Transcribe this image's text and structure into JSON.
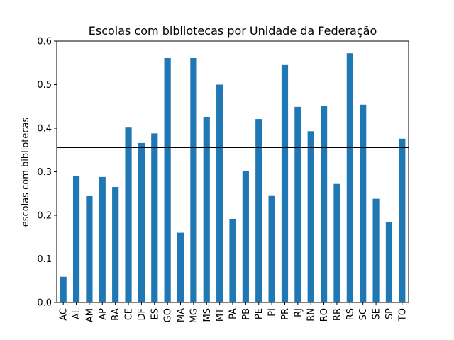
{
  "chart_data": {
    "type": "bar",
    "title": "Escolas com bibliotecas por Unidade da Federação",
    "xlabel": "",
    "ylabel": "escolas com bibliotecas",
    "categories": [
      "AC",
      "AL",
      "AM",
      "AP",
      "BA",
      "CE",
      "DF",
      "ES",
      "GO",
      "MA",
      "MG",
      "MS",
      "MT",
      "PA",
      "PB",
      "PE",
      "PI",
      "PR",
      "RJ",
      "RN",
      "RO",
      "RR",
      "RS",
      "SC",
      "SE",
      "SP",
      "TO"
    ],
    "values": [
      0.059,
      0.291,
      0.244,
      0.288,
      0.265,
      0.403,
      0.366,
      0.388,
      0.561,
      0.16,
      0.561,
      0.426,
      0.5,
      0.192,
      0.301,
      0.421,
      0.246,
      0.545,
      0.449,
      0.393,
      0.452,
      0.272,
      0.572,
      0.454,
      0.238,
      0.184,
      0.376
    ],
    "reference_line": 0.356,
    "ylim": [
      0,
      0.6
    ],
    "yticks": [
      "0.0",
      "0.1",
      "0.2",
      "0.3",
      "0.4",
      "0.5",
      "0.6"
    ],
    "grid": false,
    "bar_color": "#1f77b4",
    "line_color": "#000000"
  }
}
